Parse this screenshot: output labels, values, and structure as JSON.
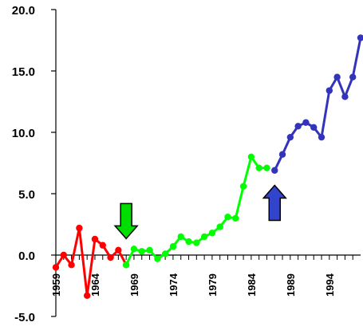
{
  "chart_data": {
    "type": "line",
    "title": "",
    "xlabel": "",
    "ylabel": "",
    "xlim": [
      1959,
      1997
    ],
    "ylim": [
      -5,
      20
    ],
    "y_ticks": [
      {
        "value": 20,
        "label": "20.0"
      },
      {
        "value": 15,
        "label": "15.0"
      },
      {
        "value": 10,
        "label": "10.0"
      },
      {
        "value": 5,
        "label": "5.0"
      },
      {
        "value": 0,
        "label": "0.0"
      },
      {
        "value": -5,
        "label": "-5.0"
      }
    ],
    "x_tick_labels": [
      {
        "value": 1959,
        "label": "1959"
      },
      {
        "value": 1964,
        "label": "1964"
      },
      {
        "value": 1969,
        "label": "1969"
      },
      {
        "value": 1974,
        "label": "1974"
      },
      {
        "value": 1979,
        "label": "1979"
      },
      {
        "value": 1984,
        "label": "1984"
      },
      {
        "value": 1989,
        "label": "1989"
      },
      {
        "value": 1994,
        "label": "1994"
      }
    ],
    "grid": false,
    "legend": "none",
    "series": [
      {
        "color": "#ff0000",
        "points": [
          [
            1959,
            -1.0
          ],
          [
            1960,
            0.0
          ],
          [
            1961,
            -0.8
          ],
          [
            1962,
            2.2
          ],
          [
            1963,
            -3.3
          ],
          [
            1964,
            1.3
          ],
          [
            1965,
            0.8
          ],
          [
            1966,
            -0.2
          ],
          [
            1967,
            0.4
          ],
          [
            1968,
            -0.8
          ]
        ]
      },
      {
        "color": "#00ff00",
        "points": [
          [
            1968,
            -0.8
          ],
          [
            1969,
            0.5
          ],
          [
            1970,
            0.3
          ],
          [
            1971,
            0.4
          ],
          [
            1972,
            -0.3
          ],
          [
            1973,
            0.1
          ],
          [
            1974,
            0.7
          ],
          [
            1975,
            1.5
          ],
          [
            1976,
            1.1
          ],
          [
            1977,
            1.0
          ],
          [
            1978,
            1.5
          ],
          [
            1979,
            1.8
          ],
          [
            1980,
            2.3
          ],
          [
            1981,
            3.1
          ],
          [
            1982,
            3.0
          ],
          [
            1983,
            5.6
          ],
          [
            1984,
            8.0
          ],
          [
            1985,
            7.1
          ],
          [
            1986,
            7.1
          ]
        ]
      },
      {
        "color": "#3333bb",
        "points": [
          [
            1987,
            6.9
          ],
          [
            1988,
            8.2
          ],
          [
            1989,
            9.6
          ],
          [
            1990,
            10.5
          ],
          [
            1991,
            10.8
          ],
          [
            1992,
            10.4
          ],
          [
            1993,
            9.6
          ],
          [
            1994,
            13.4
          ],
          [
            1995,
            14.5
          ],
          [
            1996,
            12.9
          ],
          [
            1997,
            14.5
          ],
          [
            1998,
            17.7
          ]
        ]
      }
    ],
    "annotations": [
      {
        "type": "arrow-down",
        "color": "#00dd00",
        "x": 1968,
        "y": 4.2
      },
      {
        "type": "arrow-up",
        "color": "#3344cc",
        "x": 1987,
        "y": 3.6
      }
    ]
  }
}
